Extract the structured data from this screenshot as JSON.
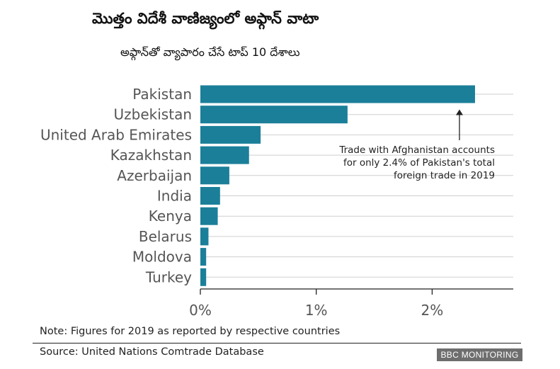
{
  "title": "మొత్తం విదేశీ వాణిజ్యంలో అఫ్గాన్ వాటా",
  "subtitle": "అఫ్గాన్‌తో వ్యాపారం చేసే టాప్ 10 దేశాలు",
  "note": "Note: Figures for 2019 as reported by respective countries",
  "source": "Source: United Nations Comtrade Database",
  "brand": "BBC MONITORING",
  "colors": {
    "bar": "#1b7f99",
    "grid": "#cfcfcf",
    "axis": "#222222",
    "label": "#555555"
  },
  "chart_data": {
    "type": "bar",
    "orientation": "horizontal",
    "categories": [
      "Pakistan",
      "Uzbekistan",
      "United Arab Emirates",
      "Kazakhstan",
      "Azerbaijan",
      "India",
      "Kenya",
      "Belarus",
      "Moldova",
      "Turkey"
    ],
    "values": [
      2.37,
      1.27,
      0.52,
      0.42,
      0.25,
      0.17,
      0.15,
      0.07,
      0.05,
      0.05
    ],
    "unit": "%",
    "xlim": [
      0,
      2.7
    ],
    "xticks": [
      0,
      1,
      2
    ],
    "xtick_labels": [
      "0%",
      "1%",
      "2%"
    ],
    "grid": true,
    "annotation": {
      "lines": [
        "Trade with Afghanistan accounts",
        "for only 2.4% of Pakistan's total",
        "foreign trade in 2019"
      ],
      "points_to": "Pakistan"
    }
  }
}
